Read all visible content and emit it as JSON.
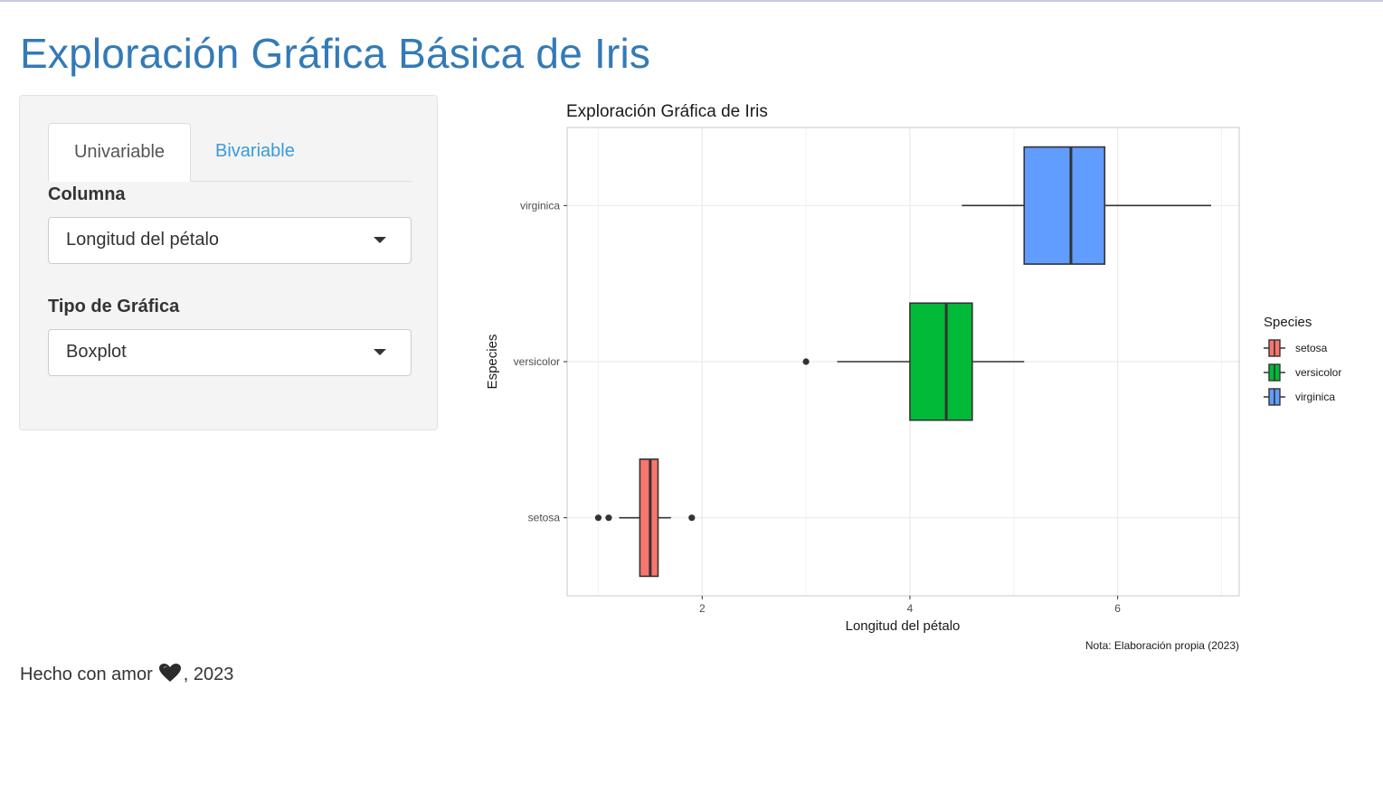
{
  "page": {
    "title": "Exploración Gráfica Básica de Iris"
  },
  "sidebar": {
    "tabs": [
      {
        "label": "Univariable",
        "active": true
      },
      {
        "label": "Bivariable",
        "active": false
      }
    ],
    "column_label": "Columna",
    "column_value": "Longitud del pétalo",
    "chart_type_label": "Tipo de Gráfica",
    "chart_type_value": "Boxplot"
  },
  "footer": {
    "prefix": "Hecho con amor",
    "suffix": ", 2023",
    "icon": "heart-icon"
  },
  "chart_data": {
    "type": "boxplot",
    "orientation": "horizontal",
    "title": "Exploración Gráfica de Iris",
    "xlabel": "Longitud del pétalo",
    "ylabel": "Especies",
    "caption": "Nota: Elaboración propia (2023)",
    "xlim": [
      0.7,
      7.17
    ],
    "xticks": [
      2,
      4,
      6
    ],
    "categories": [
      "setosa",
      "versicolor",
      "virginica"
    ],
    "legend": {
      "title": "Species",
      "position": "right"
    },
    "grid": true,
    "series": [
      {
        "name": "setosa",
        "color": "#F8766D",
        "whisker_low": 1.2,
        "q1": 1.4,
        "median": 1.5,
        "q3": 1.575,
        "whisker_high": 1.7,
        "outliers": [
          1.0,
          1.1,
          1.9
        ]
      },
      {
        "name": "versicolor",
        "color": "#00BA38",
        "whisker_low": 3.3,
        "q1": 4.0,
        "median": 4.35,
        "q3": 4.6,
        "whisker_high": 5.1,
        "outliers": [
          3.0
        ]
      },
      {
        "name": "virginica",
        "color": "#619CFF",
        "whisker_low": 4.5,
        "q1": 5.1,
        "median": 5.55,
        "q3": 5.875,
        "whisker_high": 6.9,
        "outliers": []
      }
    ]
  }
}
